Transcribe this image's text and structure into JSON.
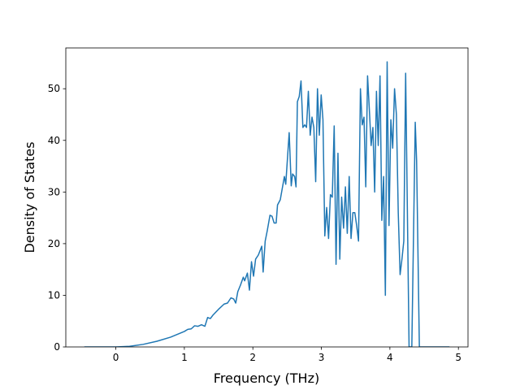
{
  "chart_data": {
    "type": "line",
    "x_label": "Frequency (THz)",
    "y_label": "Density of States",
    "xlim": [
      -0.73,
      5.14
    ],
    "ylim": [
      0,
      57.9
    ],
    "xticks": [
      0,
      1,
      2,
      3,
      4,
      5
    ],
    "yticks": [
      0,
      10,
      20,
      30,
      40,
      50
    ],
    "grid": false,
    "series": [
      {
        "color": "#1f77b4",
        "x": [
          -0.46,
          0,
          0.2,
          0.4,
          0.6,
          0.8,
          1.0,
          1.05,
          1.1,
          1.15,
          1.2,
          1.25,
          1.3,
          1.34,
          1.38,
          1.42,
          1.5,
          1.58,
          1.63,
          1.68,
          1.72,
          1.75,
          1.78,
          1.82,
          1.86,
          1.88,
          1.92,
          1.95,
          1.98,
          2.01,
          2.04,
          2.08,
          2.13,
          2.15,
          2.18,
          2.21,
          2.25,
          2.28,
          2.31,
          2.34,
          2.36,
          2.4,
          2.46,
          2.48,
          2.53,
          2.56,
          2.58,
          2.61,
          2.63,
          2.65,
          2.677,
          2.703,
          2.73,
          2.757,
          2.783,
          2.81,
          2.837,
          2.863,
          2.89,
          2.917,
          2.943,
          2.97,
          2.997,
          3.023,
          3.05,
          3.077,
          3.105,
          3.132,
          3.159,
          3.187,
          3.214,
          3.242,
          3.269,
          3.296,
          3.324,
          3.351,
          3.378,
          3.406,
          3.433,
          3.46,
          3.488,
          3.515,
          3.542,
          3.57,
          3.596,
          3.622,
          3.648,
          3.674,
          3.7,
          3.726,
          3.752,
          3.778,
          3.804,
          3.83,
          3.856,
          3.882,
          3.908,
          3.934,
          3.96,
          3.987,
          4.014,
          4.041,
          4.068,
          4.095,
          4.122,
          4.149,
          4.176,
          4.203,
          4.23,
          4.28,
          4.32,
          4.37,
          4.39,
          4.43,
          4.87
        ],
        "values": [
          0,
          0,
          0.12,
          0.5,
          1.1,
          1.9,
          3.0,
          3.4,
          3.5,
          4.1,
          4.0,
          4.3,
          4.0,
          5.7,
          5.5,
          6.2,
          7.3,
          8.3,
          8.5,
          9.5,
          9.3,
          8.5,
          10.7,
          12.0,
          13.5,
          12.8,
          14.3,
          11.0,
          16.5,
          13.7,
          17.0,
          17.8,
          19.5,
          14.5,
          20.5,
          22.5,
          25.5,
          25.3,
          24.0,
          24.0,
          27.5,
          28.5,
          33.0,
          31.5,
          41.5,
          31.2,
          33.5,
          33.0,
          31.0,
          47.5,
          48.5,
          51.5,
          42.5,
          43.0,
          42.5,
          49.5,
          41.0,
          44.5,
          42.5,
          32.0,
          50.0,
          41.0,
          48.8,
          44.0,
          21.5,
          27.0,
          21.0,
          29.5,
          29.0,
          42.8,
          16.0,
          37.5,
          17.0,
          29.0,
          23.0,
          31.0,
          22.0,
          33.0,
          21.0,
          26.0,
          26.0,
          23.5,
          20.5,
          50.0,
          43.0,
          44.5,
          31.0,
          52.5,
          46.0,
          39.0,
          42.5,
          30.0,
          49.5,
          39.0,
          52.5,
          24.5,
          33.0,
          10.0,
          55.2,
          23.5,
          44.0,
          38.5,
          50.0,
          45.0,
          26.0,
          14.0,
          17.0,
          20.5,
          53.0,
          0,
          0,
          43.5,
          36.0,
          0,
          0
        ]
      }
    ]
  }
}
